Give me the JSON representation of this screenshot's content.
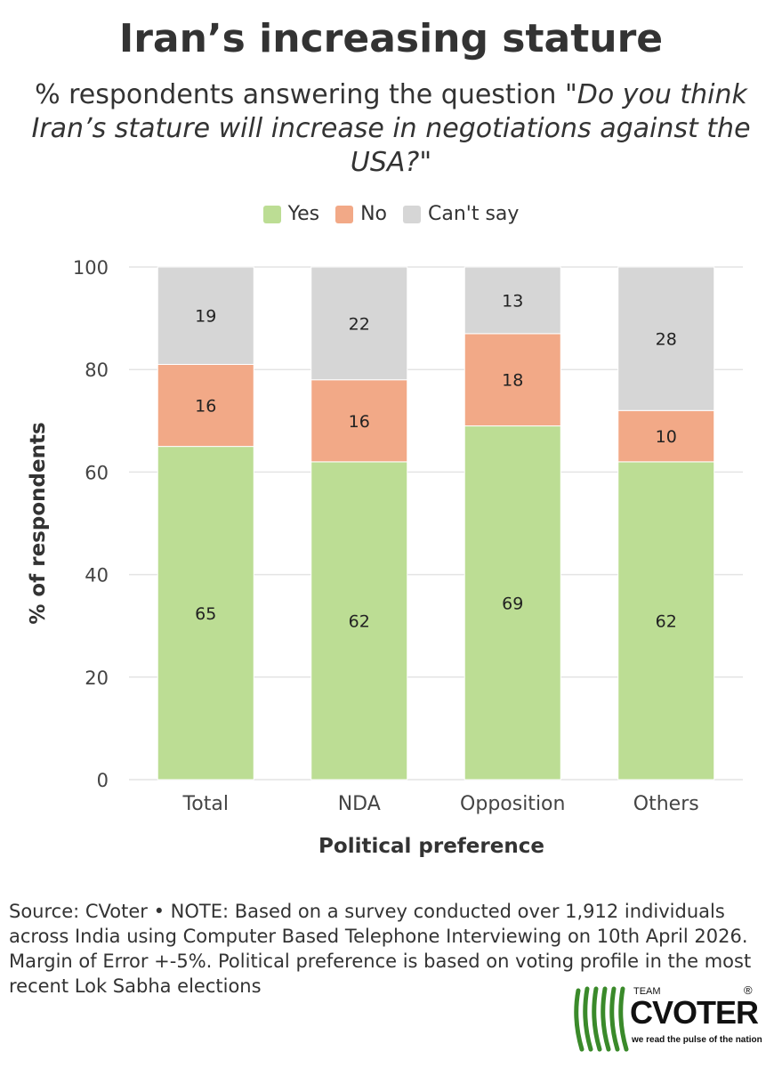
{
  "title": "Iran’s increasing stature",
  "subtitle_lead": "% respondents answering the question",
  "subtitle_question": "\"Do you think Iran’s stature will increase in negotiations against the USA?\"",
  "colors": {
    "yes": "#bcdd94",
    "no": "#f2a987",
    "cant_say": "#d6d6d6"
  },
  "chart_data": {
    "type": "bar",
    "stacked": true,
    "categories": [
      "Total",
      "NDA",
      "Opposition",
      "Others"
    ],
    "series": [
      {
        "name": "Yes",
        "values": [
          65,
          62,
          69,
          62
        ]
      },
      {
        "name": "No",
        "values": [
          16,
          16,
          18,
          10
        ]
      },
      {
        "name": "Can't say",
        "values": [
          19,
          22,
          13,
          28
        ]
      }
    ],
    "yticks": [
      "0",
      "20",
      "40",
      "60",
      "80",
      "100"
    ],
    "ylim": [
      0,
      100
    ],
    "xlabel": "Political preference",
    "ylabel": "% of respondents",
    "legend_position": "top"
  },
  "note": "Source: CVoter • NOTE: Based on a survey conducted over 1,912 individuals across India using Computer Based Telephone Interviewing on 10th April 2026. Margin of Error +-5%. Political preference is based on voting profile in the most recent Lok Sabha elections",
  "logo": {
    "team": "TEAM",
    "brand": "CVOTER",
    "registered": "®",
    "tagline": "we read the pulse of the nation"
  }
}
